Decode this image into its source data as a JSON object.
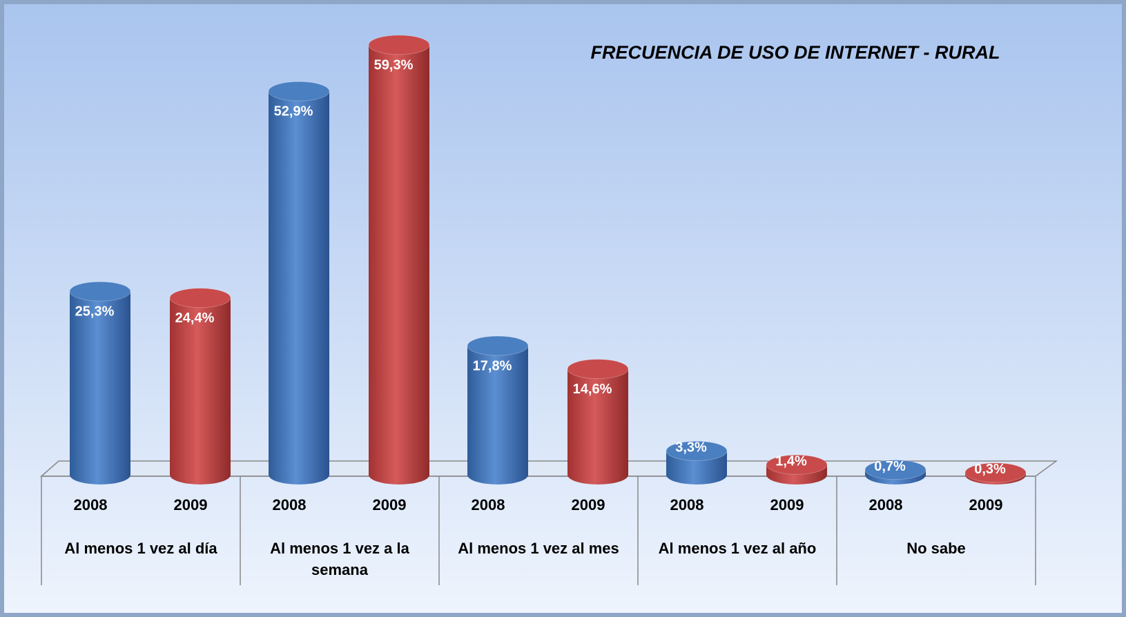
{
  "chart_data": {
    "type": "bar",
    "title": "FRECUENCIA DE USO DE INTERNET - RURAL",
    "categories": [
      "Al menos 1 vez al día",
      "Al menos 1 vez a  la semana",
      "Al menos 1 vez al mes",
      "Al menos 1 vez al año",
      "No sabe"
    ],
    "series": [
      {
        "name": "2008",
        "color": "#4a7fc1",
        "values": [
          25.3,
          52.9,
          17.8,
          3.3,
          0.7
        ],
        "value_labels": [
          "25,3%",
          "52,9%",
          "17,8%",
          "3,3%",
          "0,7%"
        ]
      },
      {
        "name": "2009",
        "color": "#c84a4a",
        "values": [
          24.4,
          59.3,
          14.6,
          1.4,
          0.3
        ],
        "value_labels": [
          "24,4%",
          "59,3%",
          "14,6%",
          "1,4%",
          "0,3%"
        ]
      }
    ]
  }
}
